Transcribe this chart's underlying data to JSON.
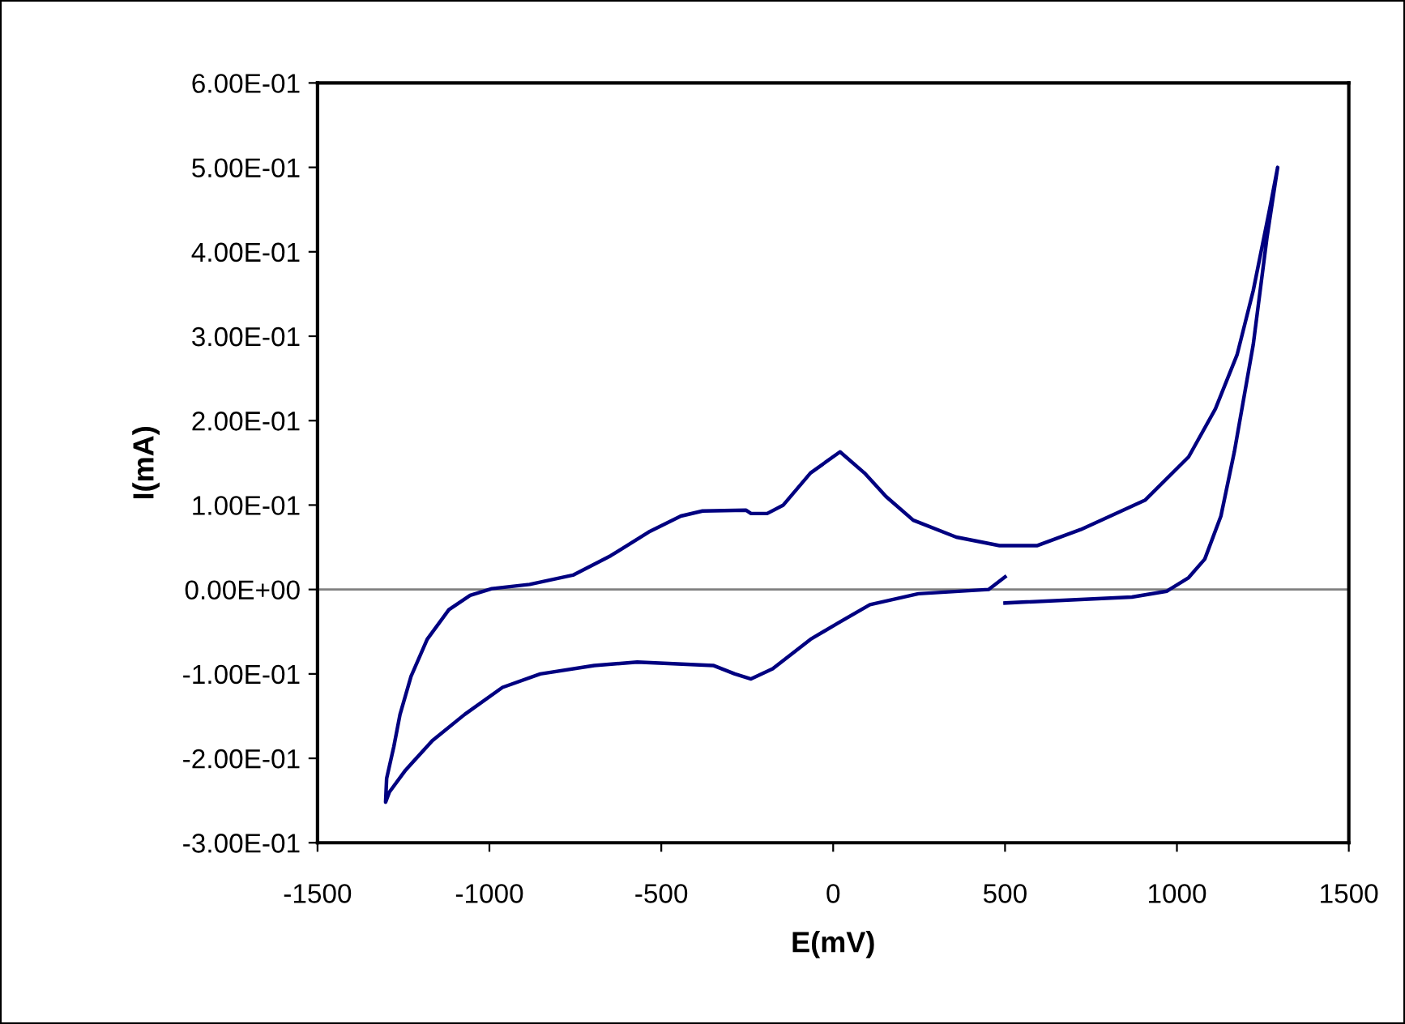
{
  "chart_data": {
    "type": "line",
    "xlabel": "E(mV)",
    "ylabel": "I(mA)",
    "xlim": [
      -1500,
      1500
    ],
    "xticks": [
      -1500,
      -1000,
      -500,
      0,
      500,
      1000,
      1500
    ],
    "ylim": [
      -0.3,
      0.6
    ],
    "yticks": [
      {
        "value": 0.6,
        "label": "6.00E-01"
      },
      {
        "value": 0.5,
        "label": "5.00E-01"
      },
      {
        "value": 0.4,
        "label": "4.00E-01"
      },
      {
        "value": 0.3,
        "label": "3.00E-01"
      },
      {
        "value": 0.2,
        "label": "2.00E-01"
      },
      {
        "value": 0.1,
        "label": "1.00E-01"
      },
      {
        "value": 0,
        "label": "0.00E+00"
      },
      {
        "value": -0.1,
        "label": "-1.00E-01"
      },
      {
        "value": -0.2,
        "label": "-2.00E-01"
      },
      {
        "value": -0.3,
        "label": "-3.00E-01"
      }
    ],
    "grid": false,
    "marker": "none",
    "line_style": "solid",
    "ref_lines": [
      {
        "axis": "y",
        "value": 0,
        "color": "#808080"
      }
    ],
    "series": [
      {
        "color": "#000080",
        "x": [
          500,
          869,
          971,
          1034,
          1081,
          1128,
          1167,
          1222,
          1262,
          1293,
          1269,
          1222,
          1175,
          1112,
          1034,
          908,
          720,
          594,
          484,
          358,
          233,
          154,
          91,
          20,
          -66,
          -145,
          -192,
          -239,
          -254,
          -380,
          -443,
          -537,
          -647,
          -757,
          -883,
          -993,
          -1056,
          -1118,
          -1181,
          -1228,
          -1260,
          -1278,
          -1299,
          -1302,
          -1291,
          -1244,
          -1166,
          -1072,
          -962,
          -852,
          -695,
          -570,
          -349,
          -286,
          -239,
          -176,
          -66,
          13,
          107,
          248,
          452,
          500
        ],
        "values": [
          -0.016,
          -0.009,
          -0.002,
          0.014,
          0.036,
          0.087,
          0.163,
          0.29,
          0.417,
          0.5,
          0.449,
          0.354,
          0.278,
          0.214,
          0.157,
          0.106,
          0.071,
          0.052,
          0.052,
          0.062,
          0.082,
          0.11,
          0.138,
          0.163,
          0.138,
          0.1,
          0.09,
          0.09,
          0.094,
          0.093,
          0.087,
          0.068,
          0.04,
          0.017,
          0.006,
          0.001,
          -0.007,
          -0.024,
          -0.059,
          -0.103,
          -0.148,
          -0.186,
          -0.224,
          -0.252,
          -0.24,
          -0.214,
          -0.179,
          -0.148,
          -0.116,
          -0.1,
          -0.09,
          -0.086,
          -0.09,
          -0.1,
          -0.106,
          -0.094,
          -0.059,
          -0.04,
          -0.018,
          -0.005,
          0.0,
          0.015
        ]
      }
    ]
  }
}
